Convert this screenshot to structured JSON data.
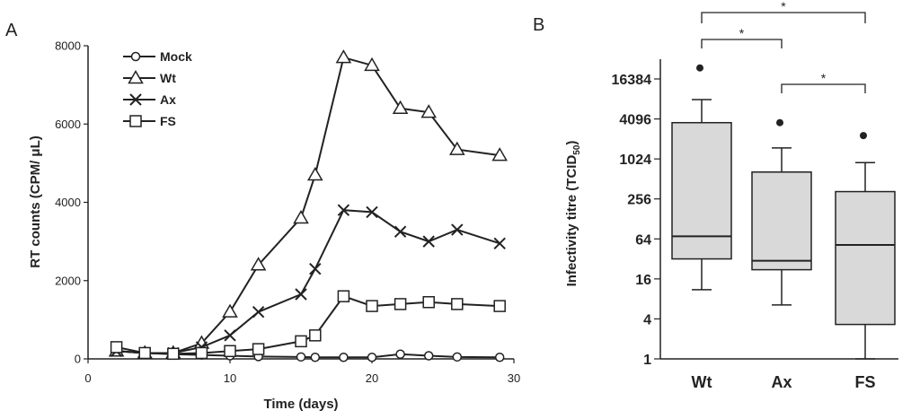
{
  "chart_data": [
    {
      "type": "line",
      "panel_label": "A",
      "xlabel": "Time (days)",
      "ylabel": "RT counts (CPM/ μL)",
      "xlim": [
        0,
        30
      ],
      "ylim": [
        0,
        8000
      ],
      "x_ticks": [
        0,
        10,
        20,
        30
      ],
      "y_ticks": [
        0,
        2000,
        4000,
        6000,
        8000
      ],
      "grid": false,
      "legend_position": "top-left",
      "series": [
        {
          "name": "Mock",
          "marker": "circle",
          "x": [
            2,
            4,
            6,
            8,
            10,
            12,
            15,
            16,
            18,
            20,
            22,
            24,
            26,
            29
          ],
          "y": [
            200,
            150,
            120,
            100,
            80,
            60,
            50,
            40,
            40,
            40,
            120,
            80,
            50,
            40
          ]
        },
        {
          "name": "Wt",
          "marker": "triangle",
          "x": [
            2,
            4,
            6,
            8,
            10,
            12,
            15,
            16,
            18,
            20,
            22,
            24,
            26,
            29
          ],
          "y": [
            200,
            150,
            150,
            400,
            1200,
            2400,
            3600,
            4700,
            7700,
            7500,
            6400,
            6300,
            5350,
            5200
          ]
        },
        {
          "name": "Ax",
          "marker": "x",
          "x": [
            2,
            4,
            6,
            8,
            10,
            12,
            15,
            16,
            18,
            20,
            22,
            24,
            26,
            29
          ],
          "y": [
            200,
            150,
            150,
            300,
            600,
            1200,
            1650,
            2300,
            3800,
            3750,
            3250,
            3000,
            3300,
            2950
          ]
        },
        {
          "name": "FS",
          "marker": "square",
          "x": [
            2,
            4,
            6,
            8,
            10,
            12,
            15,
            16,
            18,
            20,
            22,
            24,
            26,
            29
          ],
          "y": [
            300,
            150,
            130,
            150,
            200,
            250,
            450,
            600,
            1600,
            1350,
            1400,
            1450,
            1400,
            1350
          ]
        }
      ]
    },
    {
      "type": "box",
      "panel_label": "B",
      "ylabel": "Infectivity titre (TCID",
      "ylabel_sub": "50",
      "ylabel_close": ")",
      "yscale": "log4",
      "y_ticks": [
        1,
        4,
        16,
        64,
        256,
        1024,
        4096,
        16384
      ],
      "y_tick_labels": [
        "1",
        "4",
        "16",
        "64",
        "256",
        "1024",
        "4096",
        "16384"
      ],
      "ylim": [
        1,
        40000
      ],
      "categories": [
        "Wt",
        "Ax",
        "FS"
      ],
      "boxes": [
        {
          "category": "Wt",
          "whisker_low": 11,
          "q1": 32,
          "median": 70,
          "q3": 3600,
          "whisker_high": 8000,
          "outliers": [
            24000
          ]
        },
        {
          "category": "Ax",
          "whisker_low": 6.5,
          "q1": 22,
          "median": 30,
          "q3": 650,
          "whisker_high": 1500,
          "outliers": [
            3600
          ]
        },
        {
          "category": "FS",
          "whisker_low": 1,
          "q1": 3.3,
          "median": 52,
          "q3": 330,
          "whisker_high": 900,
          "outliers": [
            2300
          ]
        }
      ],
      "significance": [
        {
          "from": "Wt",
          "to": "Ax",
          "label": "*"
        },
        {
          "from": "Wt",
          "to": "FS",
          "label": "*"
        },
        {
          "from": "Ax",
          "to": "FS",
          "label": "*"
        }
      ]
    }
  ]
}
